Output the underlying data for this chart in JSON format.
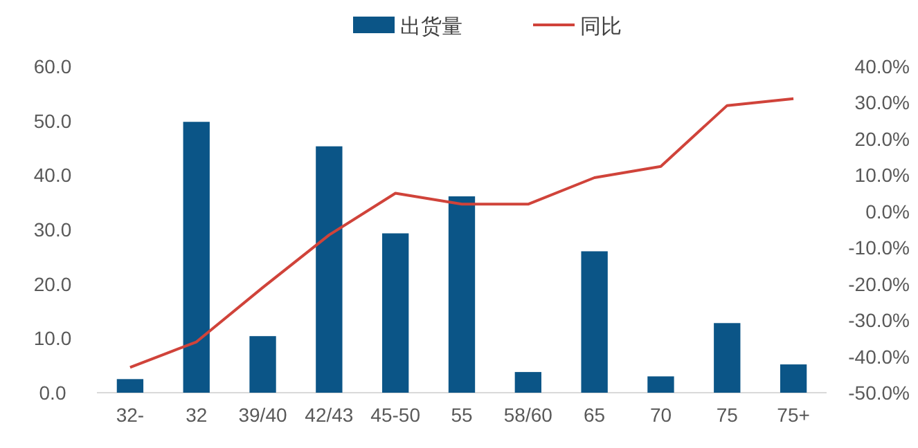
{
  "chart_data": {
    "type": "bar",
    "categories": [
      "32-",
      "32",
      "39/40",
      "42/43",
      "45-50",
      "55",
      "58/60",
      "65",
      "70",
      "75",
      "75+"
    ],
    "series": [
      {
        "name": "出货量",
        "color": "#0b5587",
        "values": [
          2.5,
          49.8,
          10.4,
          45.3,
          29.3,
          36.1,
          3.8,
          26.0,
          3.0,
          12.8,
          5.2
        ]
      },
      {
        "name": "同比",
        "type": "line",
        "axis": "y2",
        "color": "#d0433a",
        "values": [
          -43,
          -36,
          -21,
          -6.5,
          5,
          2,
          2,
          9.3,
          12.4,
          29.2,
          31.1
        ]
      }
    ],
    "ylim": [
      0,
      60
    ],
    "yticks": [
      {
        "value": 0,
        "label": "0.0"
      },
      {
        "value": 10,
        "label": "10.0"
      },
      {
        "value": 20,
        "label": "20.0"
      },
      {
        "value": 30,
        "label": "30.0"
      },
      {
        "value": 40,
        "label": "40.0"
      },
      {
        "value": 50,
        "label": "50.0"
      },
      {
        "value": 60,
        "label": "60.0"
      }
    ],
    "y2lim": [
      -50,
      40
    ],
    "y2ticks": [
      {
        "value": -50,
        "label": "-50.0%"
      },
      {
        "value": -40,
        "label": "-40.0%"
      },
      {
        "value": -30,
        "label": "-30.0%"
      },
      {
        "value": -20,
        "label": "-20.0%"
      },
      {
        "value": -10,
        "label": "-10.0%"
      },
      {
        "value": 0,
        "label": "0.0%"
      },
      {
        "value": 10,
        "label": "10.0%"
      },
      {
        "value": 20,
        "label": "20.0%"
      },
      {
        "value": 30,
        "label": "30.0%"
      },
      {
        "value": 40,
        "label": "40.0%"
      }
    ],
    "grid": false,
    "legend": "top"
  }
}
